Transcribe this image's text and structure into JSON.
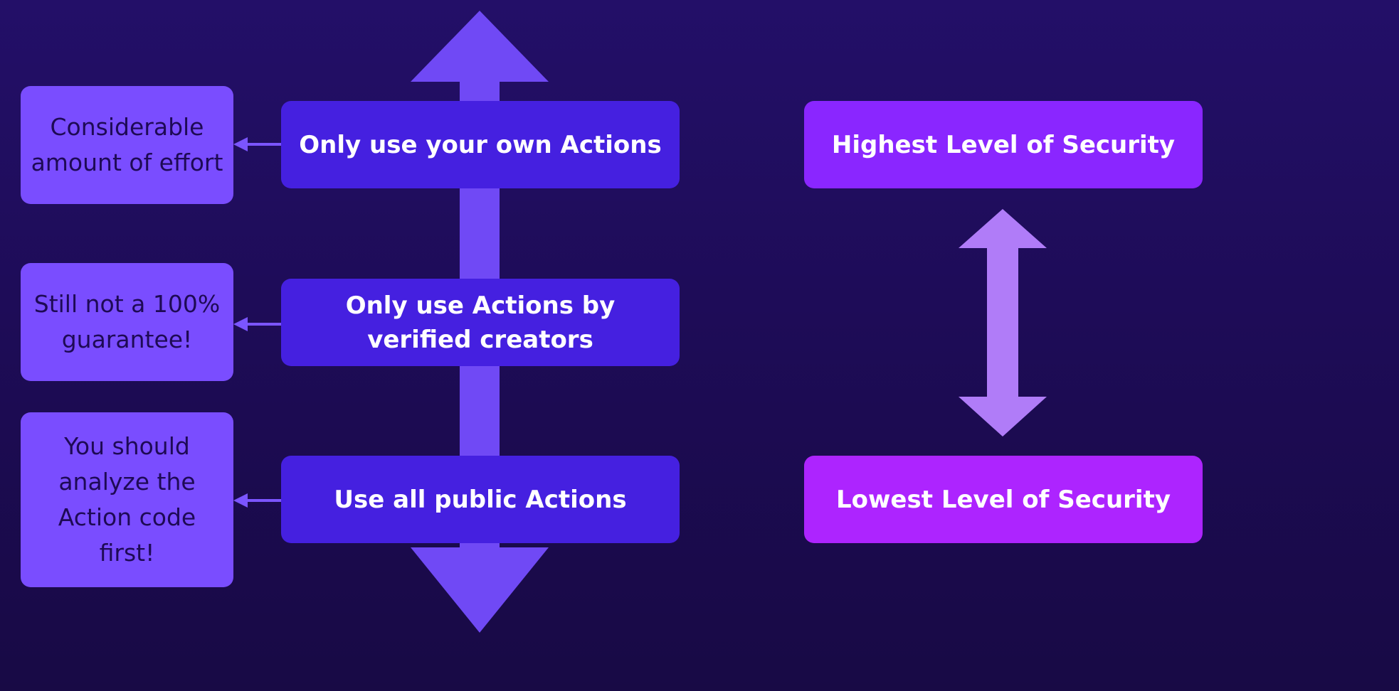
{
  "colors": {
    "background": "#210e60",
    "main_arrow": "#7049f5",
    "connector_arrow": "#7b55ff",
    "level_arrow": "#b07cf8",
    "action_box": "#4520e0",
    "note_box": "#7a4dff",
    "high_security_box": "#8a26ff",
    "low_security_box": "#ad24ff"
  },
  "actions": [
    {
      "label": "Only use your own Actions"
    },
    {
      "label": "Only use Actions by verified creators"
    },
    {
      "label": "Use all public Actions"
    }
  ],
  "notes": [
    {
      "text": "Considerable amount of effort"
    },
    {
      "text": "Still not a 100% guarantee!"
    },
    {
      "text": "You should analyze the Action code first!"
    }
  ],
  "levels": {
    "high": "Highest Level of Security",
    "low": "Lowest Level of Security"
  }
}
